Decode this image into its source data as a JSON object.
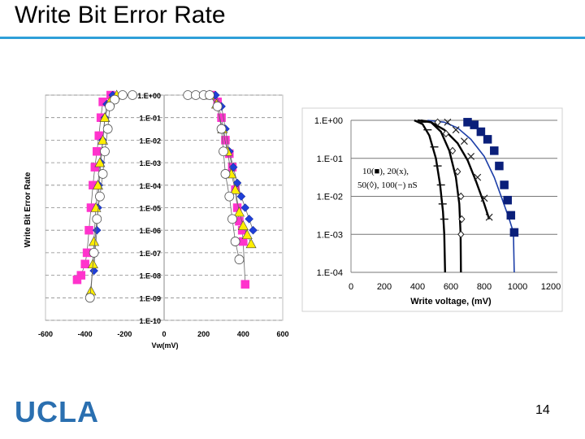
{
  "slide": {
    "title": "Write Bit Error Rate",
    "logo_text": "UCLA",
    "page_number": "14",
    "colors": {
      "rule": "#2e9fd8",
      "logo": "#2a6fb0"
    }
  },
  "chart_data": [
    {
      "type": "scatter",
      "title": "",
      "xlabel": "Vw(mV)",
      "ylabel": "Write Bit Error Rate",
      "xlim": [
        -600,
        600
      ],
      "ylim": [
        -10,
        0
      ],
      "xticks": [
        "-600",
        "-400",
        "-200",
        "0",
        "200",
        "400",
        "600"
      ],
      "yticks": [
        "1.E+00",
        "1.E-01",
        "1.E-02",
        "1.E-03",
        "1.E-04",
        "1.E-05",
        "1.E-06",
        "1.E-07",
        "1.E-08",
        "1.E-09",
        "1.E-10"
      ],
      "grid": "horizontal dashed",
      "series": [
        {
          "name": "magenta squares",
          "marker": "square",
          "color": "#ff33cc",
          "points": [
            [
              -270,
              0
            ],
            [
              -310,
              -0.3
            ],
            [
              -320,
              -1
            ],
            [
              -330,
              -1.8
            ],
            [
              -340,
              -2.5
            ],
            [
              -350,
              -3.2
            ],
            [
              -360,
              -4
            ],
            [
              -370,
              -5
            ],
            [
              -380,
              -6
            ],
            [
              -390,
              -7
            ],
            [
              -400,
              -7.5
            ],
            [
              -420,
              -8
            ],
            [
              -440,
              -8.2
            ],
            [
              240,
              0
            ],
            [
              270,
              -0.3
            ],
            [
              290,
              -1
            ],
            [
              310,
              -2
            ],
            [
              330,
              -2.6
            ],
            [
              345,
              -3.2
            ],
            [
              360,
              -4.2
            ],
            [
              370,
              -5
            ],
            [
              380,
              -5.6
            ],
            [
              395,
              -6
            ],
            [
              400,
              -6.5
            ],
            [
              410,
              -8.4
            ]
          ]
        },
        {
          "name": "blue diamonds",
          "marker": "diamond",
          "color": "#1f3fd8",
          "points": [
            [
              -260,
              0
            ],
            [
              -290,
              -0.4
            ],
            [
              -300,
              -1
            ],
            [
              -310,
              -2
            ],
            [
              -320,
              -3
            ],
            [
              -330,
              -4
            ],
            [
              -335,
              -5
            ],
            [
              -340,
              -6
            ],
            [
              -350,
              -7
            ],
            [
              -355,
              -7.8
            ],
            [
              260,
              0
            ],
            [
              290,
              -0.5
            ],
            [
              310,
              -1.5
            ],
            [
              330,
              -2.5
            ],
            [
              350,
              -3.2
            ],
            [
              370,
              -3.9
            ],
            [
              390,
              -4.5
            ],
            [
              410,
              -5
            ],
            [
              430,
              -5.5
            ],
            [
              450,
              -6
            ]
          ]
        },
        {
          "name": "yellow triangles",
          "marker": "triangle",
          "color": "#ffee00",
          "points": [
            [
              -240,
              0
            ],
            [
              -275,
              -0.3
            ],
            [
              -300,
              -1
            ],
            [
              -310,
              -2
            ],
            [
              -325,
              -3
            ],
            [
              -335,
              -4
            ],
            [
              -345,
              -5
            ],
            [
              -355,
              -6.5
            ],
            [
              -360,
              -7.5
            ],
            [
              -370,
              -8.7
            ],
            [
              230,
              0
            ],
            [
              265,
              -0.4
            ],
            [
              295,
              -1.5
            ],
            [
              320,
              -2.5
            ],
            [
              340,
              -3.5
            ],
            [
              360,
              -4.2
            ],
            [
              380,
              -5.2
            ],
            [
              400,
              -5.8
            ],
            [
              420,
              -6.2
            ],
            [
              440,
              -6.6
            ]
          ]
        },
        {
          "name": "white circles",
          "marker": "circle",
          "color": "#ffffff",
          "points": [
            [
              -160,
              0
            ],
            [
              -210,
              0
            ],
            [
              -250,
              -0.2
            ],
            [
              -275,
              -0.5
            ],
            [
              -285,
              -1.5
            ],
            [
              -300,
              -2.5
            ],
            [
              -310,
              -3.5
            ],
            [
              -325,
              -4.5
            ],
            [
              -340,
              -5.5
            ],
            [
              -355,
              -7
            ],
            [
              -375,
              -9
            ],
            [
              120,
              0
            ],
            [
              160,
              0
            ],
            [
              200,
              0
            ],
            [
              230,
              0
            ],
            [
              270,
              -0.5
            ],
            [
              290,
              -1.5
            ],
            [
              300,
              -2.5
            ],
            [
              310,
              -3.5
            ],
            [
              330,
              -4.5
            ],
            [
              345,
              -5.5
            ],
            [
              360,
              -6.5
            ],
            [
              380,
              -7.3
            ]
          ]
        }
      ]
    },
    {
      "type": "line",
      "title": "",
      "xlabel": "Write voltage, (mV)",
      "ylabel": "",
      "xlim": [
        0,
        1200
      ],
      "ylim": [
        -4,
        0
      ],
      "xticks": [
        "0",
        "200",
        "400",
        "600",
        "800",
        "1000",
        "1200"
      ],
      "yticks": [
        "1.E+00",
        "1.E-01",
        "1.E-02",
        "1.E-03",
        "1.E-04"
      ],
      "grid": "horizontal solid",
      "annotation": [
        "10(■), 20(x),",
        "50(◊), 100(−) nS"
      ],
      "series": [
        {
          "name": "10 nS",
          "marker": "square",
          "color": "#0a1f7a",
          "points": [
            [
              700,
              -0.05
            ],
            [
              740,
              -0.12
            ],
            [
              780,
              -0.3
            ],
            [
              820,
              -0.5
            ],
            [
              860,
              -0.8
            ],
            [
              890,
              -1.2
            ],
            [
              920,
              -1.7
            ],
            [
              940,
              -2.1
            ],
            [
              960,
              -2.5
            ],
            [
              980,
              -2.95
            ]
          ],
          "curve": [
            [
              460,
              0
            ],
            [
              560,
              -0.05
            ],
            [
              640,
              -0.2
            ],
            [
              720,
              -0.5
            ],
            [
              800,
              -0.95
            ],
            [
              860,
              -1.5
            ],
            [
              910,
              -2.1
            ],
            [
              950,
              -2.6
            ],
            [
              975,
              -2.95
            ],
            [
              980,
              -4
            ]
          ]
        },
        {
          "name": "20 nS",
          "marker": "x",
          "color": "#222222",
          "points": [
            [
              580,
              -0.05
            ],
            [
              630,
              -0.25
            ],
            [
              680,
              -0.55
            ],
            [
              720,
              -0.95
            ],
            [
              760,
              -1.5
            ],
            [
              800,
              -2.05
            ],
            [
              830,
              -2.55
            ]
          ],
          "curve": [
            [
              400,
              0
            ],
            [
              480,
              -0.05
            ],
            [
              560,
              -0.25
            ],
            [
              640,
              -0.6
            ],
            [
              700,
              -1.05
            ],
            [
              750,
              -1.6
            ],
            [
              800,
              -2.2
            ],
            [
              830,
              -2.6
            ]
          ]
        },
        {
          "name": "50 nS",
          "marker": "diamond-open",
          "color": "#222222",
          "points": [
            [
              520,
              -0.05
            ],
            [
              570,
              -0.35
            ],
            [
              610,
              -0.8
            ],
            [
              640,
              -1.35
            ],
            [
              660,
              -2.0
            ],
            [
              665,
              -2.6
            ],
            [
              660,
              -3.0
            ]
          ],
          "curve": [
            [
              420,
              0
            ],
            [
              480,
              -0.05
            ],
            [
              540,
              -0.3
            ],
            [
              590,
              -0.8
            ],
            [
              630,
              -1.5
            ],
            [
              650,
              -2.2
            ],
            [
              658,
              -3
            ],
            [
              660,
              -4
            ]
          ]
        },
        {
          "name": "100 nS",
          "marker": "dash",
          "color": "#111111",
          "points": [
            [
              430,
              -0.05
            ],
            [
              460,
              -0.25
            ],
            [
              500,
              -0.7
            ],
            [
              520,
              -1.2
            ],
            [
              540,
              -1.7
            ],
            [
              550,
              -2.2
            ],
            [
              560,
              -2.6
            ]
          ],
          "curve": [
            [
              380,
              0
            ],
            [
              430,
              -0.1
            ],
            [
              470,
              -0.4
            ],
            [
              510,
              -1.0
            ],
            [
              535,
              -1.7
            ],
            [
              552,
              -2.4
            ],
            [
              560,
              -3
            ],
            [
              565,
              -4
            ]
          ]
        }
      ]
    }
  ]
}
